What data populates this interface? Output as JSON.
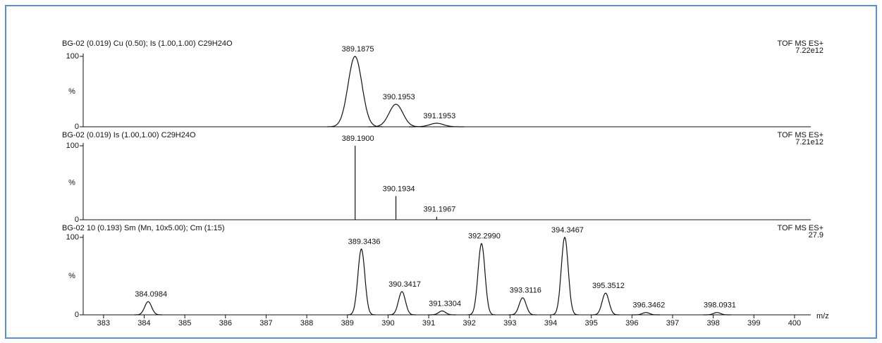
{
  "chart_data": [
    {
      "type": "profile",
      "title": "BG-02 (0.019) Cu (0.50); Is (1.00,1.00) C29H24O",
      "instrument": "TOF MS ES+",
      "scale": "7.22e12",
      "x": [
        389.1875,
        390.1953,
        391.1953
      ],
      "x_labels": [
        "389.1875",
        "390.1953",
        "391.1953"
      ],
      "values": [
        100,
        32,
        5
      ],
      "color": "#111111",
      "xlim": [
        382.5,
        400.4
      ],
      "ylim": [
        0,
        100
      ],
      "yticks": [
        0,
        100
      ],
      "ylabel": "%"
    },
    {
      "type": "stick",
      "title": "BG-02 (0.019) Is (1.00,1.00) C29H24O",
      "instrument": "TOF MS ES+",
      "scale": "7.21e12",
      "x": [
        389.19,
        390.1934,
        391.1967
      ],
      "x_labels": [
        "389.1900",
        "390.1934",
        "391.1967"
      ],
      "values": [
        100,
        32,
        4
      ],
      "color": "#111111",
      "xlim": [
        382.5,
        400.4
      ],
      "ylim": [
        0,
        100
      ],
      "yticks": [
        0,
        100
      ],
      "ylabel": "%"
    },
    {
      "type": "profile",
      "title": "BG-02 10 (0.193) Sm (Mn, 10x5.00); Cm (1:15)",
      "instrument": "TOF MS ES+",
      "scale": "27.9",
      "x": [
        384.0984,
        389.3436,
        390.3417,
        391.3304,
        392.299,
        393.3116,
        394.3467,
        395.3512,
        396.3462,
        398.0931
      ],
      "x_labels": [
        "384.0984",
        "389.3436",
        "390.3417",
        "391.3304",
        "392.2990",
        "393.3116",
        "394.3467",
        "395.3512",
        "396.3462",
        "398.0931"
      ],
      "values": [
        17,
        85,
        30,
        5,
        92,
        22,
        100,
        28,
        3,
        3
      ],
      "color": "#111111",
      "xlim": [
        382.5,
        400.4
      ],
      "ylim": [
        0,
        100
      ],
      "yticks": [
        0,
        100
      ],
      "ylabel": "%",
      "xticks": [
        383,
        384,
        385,
        386,
        387,
        388,
        389,
        390,
        391,
        392,
        393,
        394,
        395,
        396,
        397,
        398,
        399,
        400
      ],
      "xlabel": "m/z"
    }
  ]
}
